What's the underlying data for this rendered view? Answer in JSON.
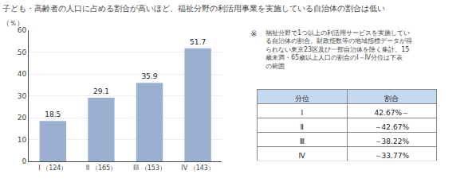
{
  "chart_data": {
    "type": "bar",
    "title": "子ども・高齢者の人口に占める割合が高いほど、福祉分野の利活用事業を実施している自治体の割合は低い",
    "ylabel": "（％）",
    "categories": [
      "I （124）",
      "II （165）",
      "III （153）",
      "IV （143）"
    ],
    "values": [
      18.5,
      29.1,
      35.9,
      51.7
    ],
    "color": "#9bafd1",
    "ylim": [
      0,
      60
    ],
    "yticks": [
      0,
      10,
      20,
      30,
      40,
      50,
      60
    ],
    "grid": true,
    "data_labels": true,
    "note_symbol": "※",
    "note": "福祉分野で1つ以上の利活用サービスを実施してい\nる自治体の割合。財政指数等の地域指標データが得\nられない東京23区及び一部自治体を除く集計。15\n歳未満・65歳以上人口の割合のⅠ～Ⅳ分位は下表\nの範囲",
    "table": {
      "headers": [
        "分位",
        "割合"
      ],
      "rows": [
        [
          "Ⅰ",
          "42.67%～"
        ],
        [
          "Ⅱ",
          "～42.67%"
        ],
        [
          "Ⅲ",
          "～38.22%"
        ],
        [
          "Ⅳ",
          "～33.77%"
        ]
      ],
      "color": "#c5d9f1"
    }
  }
}
